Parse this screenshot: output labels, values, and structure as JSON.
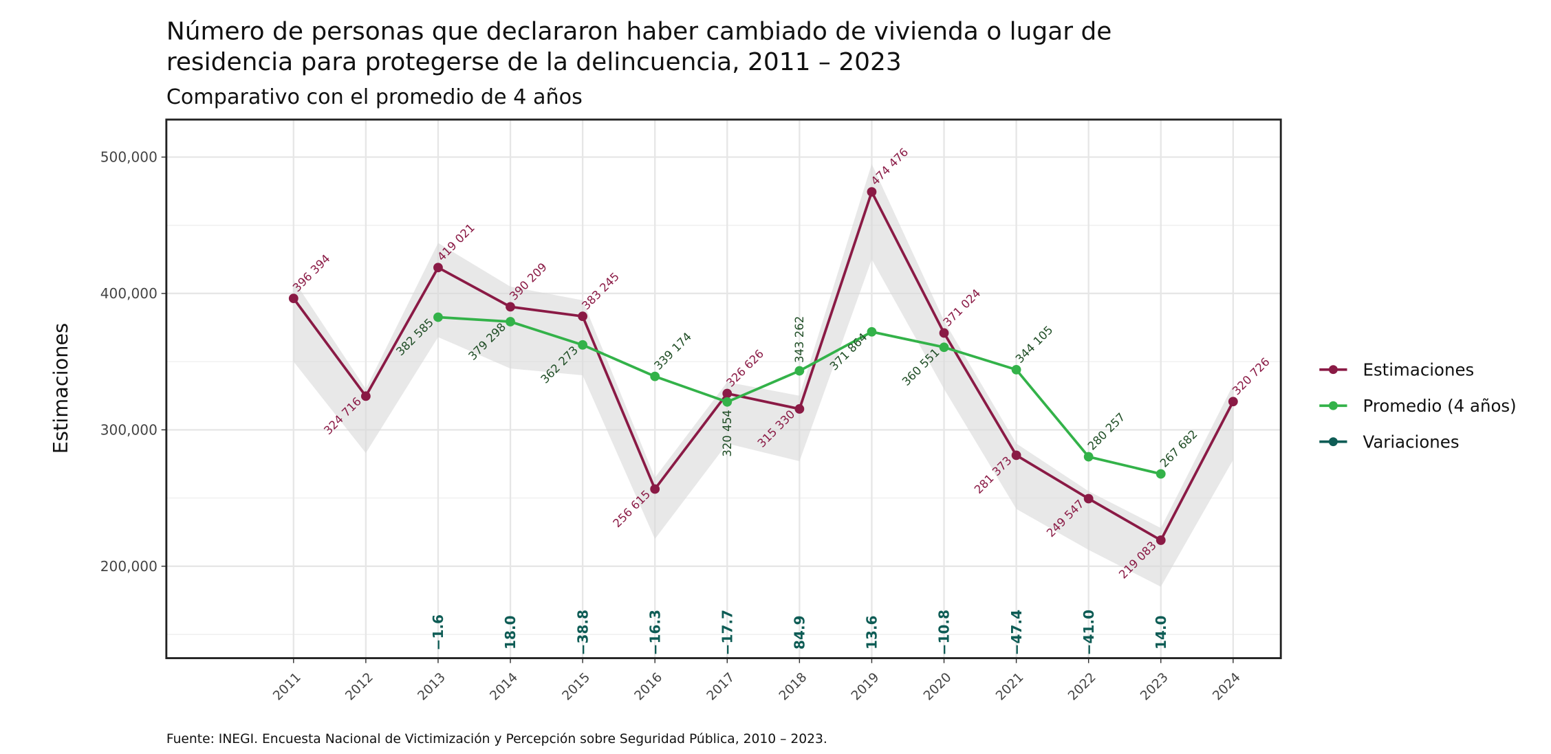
{
  "chart_data": {
    "type": "line",
    "title": "Número de personas que declararon haber cambiado de vivienda o lugar de residencia para protegerse de la delincuencia, 2011 – 2023",
    "subtitle": "Comparativo con el promedio de 4 años",
    "y_label": "Estimaciones",
    "source": "Fuente: INEGI. Encuesta Nacional de Victimización y Percepción sobre Seguridad Pública, 2010 – 2023.",
    "x": [
      2011,
      2012,
      2013,
      2014,
      2015,
      2016,
      2017,
      2018,
      2019,
      2020,
      2021,
      2022,
      2023,
      2024
    ],
    "xlim": [
      2009.24,
      2024.66
    ],
    "xticks": [
      2011,
      2012,
      2013,
      2014,
      2015,
      2016,
      2017,
      2018,
      2019,
      2020,
      2021,
      2022,
      2023,
      2024
    ],
    "ylim": [
      132600,
      527500
    ],
    "yticks": [
      {
        "value": 200000,
        "label": "200,000"
      },
      {
        "value": 300000,
        "label": "300,000"
      },
      {
        "value": 400000,
        "label": "400,000"
      },
      {
        "value": 500000,
        "label": "500,000"
      }
    ],
    "yminorticks": [
      150000,
      250000,
      350000,
      450000
    ],
    "grid": true,
    "legend": "right",
    "series": [
      {
        "name": "Estimaciones",
        "color": "#8a1a45",
        "values": [
          396394,
          324716,
          419021,
          390209,
          383245,
          256615,
          326626,
          315330,
          474476,
          371024,
          281373,
          249547,
          219083,
          320726
        ],
        "value_labels": [
          "396 394",
          "324 716",
          "419 021",
          "390 209",
          "383 245",
          "256 615",
          "326 626",
          "315 330",
          "474 476",
          "371 024",
          "281 373",
          "249 547",
          "219 083",
          "320 726"
        ],
        "ci_upper": [
          410000,
          330000,
          437000,
          405000,
          395000,
          265000,
          335000,
          325000,
          495000,
          380000,
          290000,
          255000,
          228000,
          333000
        ],
        "ci_lower": [
          350000,
          283000,
          368000,
          345000,
          340000,
          220000,
          290000,
          277000,
          425000,
          330000,
          242000,
          212000,
          185000,
          278000
        ]
      },
      {
        "name": "Promedio (4 años)",
        "color": "#33b249",
        "values": [
          null,
          null,
          382585,
          379298,
          362273,
          339174,
          320454,
          343262,
          371864,
          360551,
          344105,
          280257,
          267682,
          null
        ],
        "value_labels": [
          null,
          null,
          "382 585",
          "379 298",
          "362 273",
          "339 174",
          "320 454",
          "343 262",
          "371 864",
          "360 551",
          "344 105",
          "280 257",
          "267 682",
          null
        ]
      },
      {
        "name": "Variaciones",
        "color": "#0e5c55",
        "values": [
          null,
          null,
          -1.6,
          18.0,
          -38.8,
          -16.3,
          -17.7,
          84.9,
          13.6,
          -10.8,
          -47.4,
          -41.0,
          14.0,
          null
        ],
        "value_labels": [
          null,
          null,
          "−1.6",
          "18.0",
          "−38.8",
          "−16.3",
          "−17.7",
          "84.9",
          "13.6",
          "−10.8",
          "−47.4",
          "−41.0",
          "14.0",
          null
        ]
      }
    ]
  }
}
